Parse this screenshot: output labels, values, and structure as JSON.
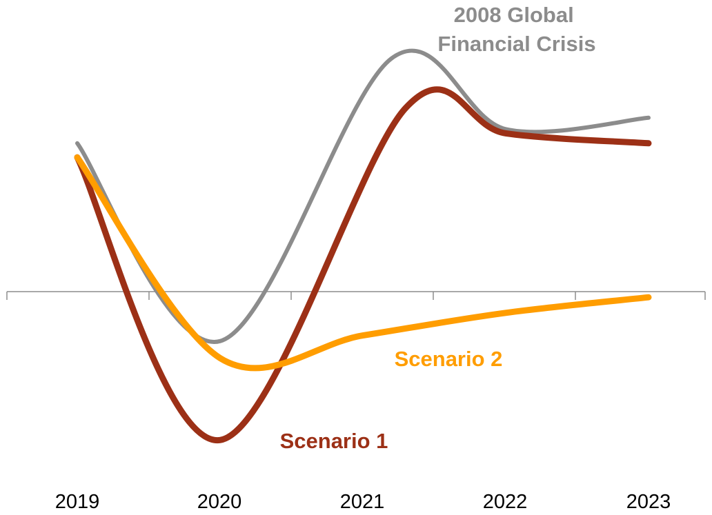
{
  "chart_data": {
    "type": "line",
    "title": "",
    "xlabel": "",
    "ylabel": "",
    "categories": [
      "2019",
      "2020",
      "2021",
      "2022",
      "2023"
    ],
    "y_axis_values_shown": false,
    "ylim": [
      -1.1,
      1.8
    ],
    "grid": false,
    "legend": "inline labels",
    "series": [
      {
        "name": "2008 Global Financial Crisis",
        "color": "#8c8c8c",
        "points": [
          {
            "x": 2019.0,
            "y": 1.05
          },
          {
            "x": 2020.0,
            "y": -0.35
          },
          {
            "x": 2021.2,
            "y": 1.65
          },
          {
            "x": 2022.0,
            "y": 1.15
          },
          {
            "x": 2023.0,
            "y": 1.23
          }
        ]
      },
      {
        "name": "Scenario 1",
        "color": "#9c3016",
        "points": [
          {
            "x": 2019.0,
            "y": 0.95
          },
          {
            "x": 2020.0,
            "y": -1.05
          },
          {
            "x": 2021.3,
            "y": 1.3
          },
          {
            "x": 2022.0,
            "y": 1.12
          },
          {
            "x": 2023.0,
            "y": 1.05
          }
        ]
      },
      {
        "name": "Scenario 2",
        "color": "#ff9d00",
        "points": [
          {
            "x": 2019.0,
            "y": 0.95
          },
          {
            "x": 2020.0,
            "y": -0.47
          },
          {
            "x": 2021.0,
            "y": -0.31
          },
          {
            "x": 2022.0,
            "y": -0.15
          },
          {
            "x": 2023.0,
            "y": -0.04
          }
        ]
      }
    ]
  }
}
